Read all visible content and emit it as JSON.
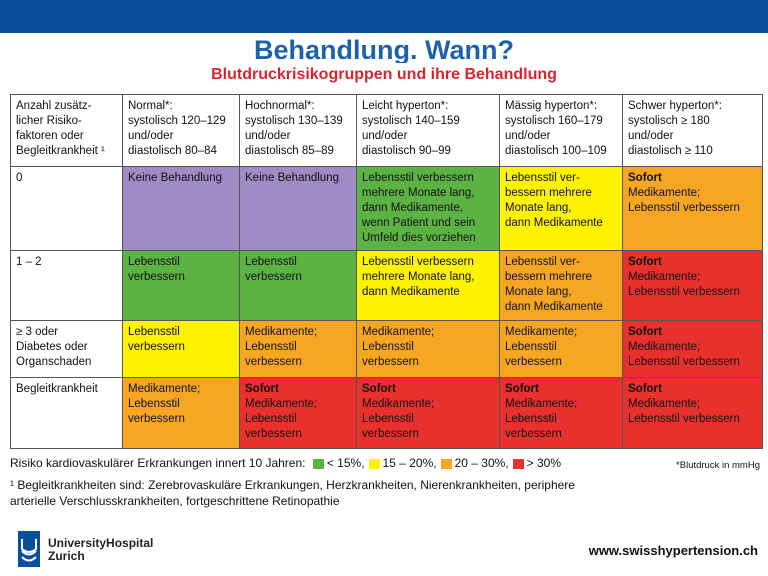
{
  "header": {
    "title": "Behandlung. Wann?",
    "subtitle": "Blutdruckrisikogruppen und ihre Behandlung"
  },
  "table": {
    "header_row": [
      {
        "lines": [
          "Anzahl zusätz-",
          "licher Risiko-",
          "faktoren oder",
          "Begleitkrankheit ¹"
        ]
      },
      {
        "lines": [
          "Normal*:",
          "systolisch 120–129",
          "und/oder",
          "diastolisch 80–84"
        ]
      },
      {
        "lines": [
          "Hochnormal*:",
          "systolisch 130–139",
          "und/oder",
          "diastolisch 85–89"
        ]
      },
      {
        "lines": [
          "Leicht hyperton*:",
          "systolisch 140–159",
          "und/oder",
          "diastolisch 90–99"
        ]
      },
      {
        "lines": [
          "Mässig hyperton*:",
          "systolisch 160–179",
          "und/oder",
          "diastolisch 100–109"
        ]
      },
      {
        "lines": [
          "Schwer hyperton*:",
          "systolisch ≥ 180",
          "und/oder",
          "diastolisch ≥ 110"
        ]
      }
    ],
    "rows": [
      {
        "label": [
          "0"
        ],
        "cells": [
          {
            "color": "purple",
            "lines": [
              "Keine Behandlung"
            ]
          },
          {
            "color": "purple",
            "lines": [
              "Keine Behandlung"
            ]
          },
          {
            "color": "green",
            "lines": [
              "Lebensstil verbessern",
              "mehrere Monate lang,",
              "dann Medikamente,",
              "wenn Patient und sein",
              "Umfeld dies vorziehen"
            ]
          },
          {
            "color": "yellow",
            "lines": [
              "Lebensstil ver-",
              "bessern mehrere",
              "Monate lang,",
              "dann Medikamente"
            ]
          },
          {
            "color": "orange",
            "bold": "Sofort",
            "lines": [
              "Medikamente;",
              "Lebensstil verbessern"
            ]
          }
        ]
      },
      {
        "label": [
          "1 – 2"
        ],
        "cells": [
          {
            "color": "green",
            "lines": [
              "Lebensstil",
              "verbessern"
            ]
          },
          {
            "color": "green",
            "lines": [
              "Lebensstil",
              "verbessern"
            ]
          },
          {
            "color": "yellow",
            "lines": [
              "Lebensstil verbessern",
              "mehrere Monate lang,",
              "dann Medikamente"
            ]
          },
          {
            "color": "orange",
            "lines": [
              "Lebensstil ver-",
              "bessern mehrere",
              "Monate lang,",
              "dann Medikamente"
            ]
          },
          {
            "color": "red",
            "bold": "Sofort",
            "lines": [
              "Medikamente;",
              "Lebensstil verbessern"
            ]
          }
        ]
      },
      {
        "label": [
          "≥ 3 oder",
          "Diabetes oder",
          "Organschaden"
        ],
        "cells": [
          {
            "color": "yellow",
            "lines": [
              "Lebensstil",
              "verbessern"
            ]
          },
          {
            "color": "orange",
            "lines": [
              "Medikamente;",
              "Lebensstil",
              "verbessern"
            ]
          },
          {
            "color": "orange",
            "lines": [
              "Medikamente;",
              "Lebensstil",
              "verbessern"
            ]
          },
          {
            "color": "orange",
            "lines": [
              "Medikamente;",
              "Lebensstil",
              "verbessern"
            ]
          },
          {
            "color": "red",
            "bold": "Sofort",
            "lines": [
              "Medikamente;",
              "Lebensstil verbessern"
            ]
          }
        ]
      },
      {
        "label": [
          "Begleitkrankheit"
        ],
        "cells": [
          {
            "color": "orange",
            "lines": [
              "Medikamente;",
              "Lebensstil",
              "verbessern"
            ]
          },
          {
            "color": "red",
            "bold": "Sofort",
            "lines": [
              "Medikamente;",
              "Lebensstil",
              "verbessern"
            ]
          },
          {
            "color": "red",
            "bold": "Sofort",
            "lines": [
              "Medikamente;",
              "Lebensstil",
              "verbessern"
            ]
          },
          {
            "color": "red",
            "bold": "Sofort",
            "lines": [
              "Medikamente;",
              "Lebensstil",
              "verbessern"
            ]
          },
          {
            "color": "red",
            "bold": "Sofort",
            "lines": [
              "Medikamente;",
              "Lebensstil verbessern"
            ]
          }
        ]
      }
    ]
  },
  "legend": {
    "prefix": "Risiko kardiovaskulärer Erkrankungen innert 10 Jahren:",
    "items": [
      {
        "color": "#5cb343",
        "label": "< 15%,"
      },
      {
        "color": "#fdf200",
        "label": "15 – 20%,"
      },
      {
        "color": "#f6a623",
        "label": "20 – 30%,"
      },
      {
        "color": "#e8312c",
        "label": "> 30%"
      }
    ],
    "bp_note": "*Blutdruck in mmHg"
  },
  "footnote": {
    "line1": "¹ Begleitkrankheiten sind: Zerebrovaskuläre Erkrankungen, Herzkrankheiten, Nierenkrankheiten, periphere",
    "line2": "arterielle Verschlusskrankheiten, fortgeschrittene Retinopathie"
  },
  "footer": {
    "institution_line1": "UniversityHospital",
    "institution_line2": "Zurich",
    "website": "www.swisshypertension.ch"
  },
  "colors": {
    "topbar": "#0b4f9c",
    "title": "#1e62a8",
    "subtitle": "#d8262e"
  }
}
